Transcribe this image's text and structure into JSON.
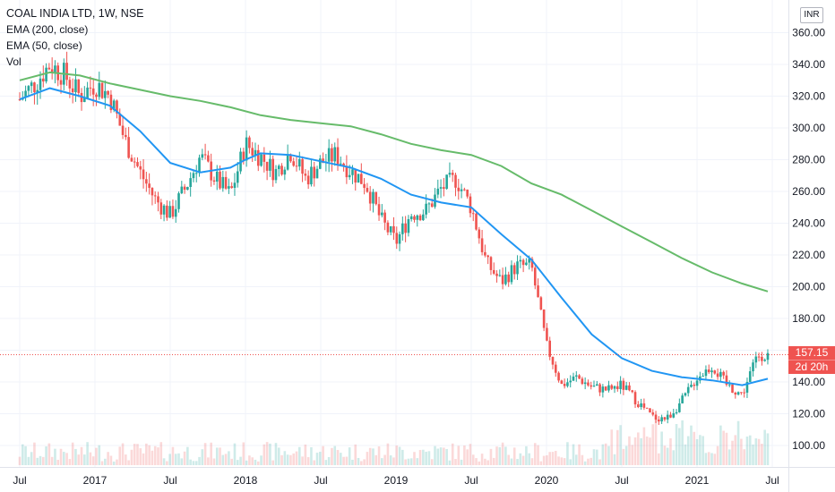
{
  "legend": {
    "title": "COAL INDIA LTD, 1W, NSE",
    "ema200": "EMA (200, close)",
    "ema50": "EMA (50, close)",
    "vol": "Vol"
  },
  "currency": "INR",
  "price_tag": {
    "price": "157.15",
    "countdown": "2d 20h"
  },
  "colors": {
    "up": "#26a69a",
    "down": "#ef5350",
    "ema200": "#66bb6a",
    "ema50": "#2196f3"
  },
  "chart_data": {
    "type": "candlestick",
    "title": "COAL INDIA LTD, 1W, NSE",
    "ylim": [
      90,
      370
    ],
    "y_ticks": [
      100,
      120,
      140,
      160,
      180,
      200,
      220,
      240,
      260,
      280,
      300,
      320,
      340,
      360
    ],
    "y_tick_labels": [
      "100.00",
      "120.00",
      "140.00",
      "160.00",
      "180.00",
      "200.00",
      "220.00",
      "240.00",
      "260.00",
      "280.00",
      "300.00",
      "320.00",
      "340.00",
      "360.00"
    ],
    "x_ticks": [
      {
        "label": "Jul",
        "t": 0.0
      },
      {
        "label": "2017",
        "t": 0.5
      },
      {
        "label": "Jul",
        "t": 1.0
      },
      {
        "label": "2018",
        "t": 1.5
      },
      {
        "label": "Jul",
        "t": 2.0
      },
      {
        "label": "2019",
        "t": 2.5
      },
      {
        "label": "Jul",
        "t": 3.0
      },
      {
        "label": "2020",
        "t": 3.5
      },
      {
        "label": "Jul",
        "t": 4.0
      },
      {
        "label": "2021",
        "t": 4.5
      },
      {
        "label": "Jul",
        "t": 5.0
      }
    ],
    "last_price": 157.15,
    "series": [
      {
        "name": "Price",
        "t": [
          0.0,
          0.1,
          0.2,
          0.3,
          0.4,
          0.5,
          0.6,
          0.7,
          0.8,
          0.9,
          1.0,
          1.1,
          1.2,
          1.3,
          1.4,
          1.5,
          1.6,
          1.7,
          1.8,
          1.9,
          2.0,
          2.1,
          2.2,
          2.3,
          2.4,
          2.5,
          2.6,
          2.7,
          2.8,
          2.9,
          3.0,
          3.1,
          3.2,
          3.3,
          3.4,
          3.5,
          3.6,
          3.7,
          3.8,
          3.9,
          4.0,
          4.1,
          4.2,
          4.3,
          4.4,
          4.5,
          4.6,
          4.7,
          4.8,
          4.9
        ],
        "price": [
          318,
          328,
          340,
          333,
          320,
          328,
          320,
          292,
          272,
          255,
          245,
          262,
          282,
          268,
          258,
          290,
          282,
          272,
          285,
          268,
          278,
          283,
          273,
          265,
          242,
          228,
          246,
          248,
          262,
          268,
          250,
          215,
          203,
          213,
          213,
          163,
          138,
          143,
          137,
          135,
          138,
          128,
          118,
          117,
          128,
          143,
          150,
          138,
          132,
          157
        ]
      },
      {
        "name": "EMA (50, close)",
        "t": [
          0.0,
          0.2,
          0.4,
          0.6,
          0.8,
          1.0,
          1.2,
          1.4,
          1.5,
          1.6,
          1.8,
          2.0,
          2.2,
          2.4,
          2.6,
          2.8,
          3.0,
          3.2,
          3.4,
          3.6,
          3.8,
          4.0,
          4.2,
          4.4,
          4.6,
          4.8,
          4.97
        ],
        "value": [
          318,
          325,
          320,
          314,
          298,
          278,
          272,
          275,
          280,
          284,
          283,
          279,
          275,
          268,
          258,
          253,
          250,
          233,
          217,
          193,
          170,
          155,
          147,
          143,
          141,
          138,
          142
        ]
      },
      {
        "name": "EMA (200, close)",
        "t": [
          0.0,
          0.2,
          0.4,
          0.6,
          0.8,
          1.0,
          1.2,
          1.4,
          1.6,
          1.8,
          2.0,
          2.2,
          2.4,
          2.6,
          2.8,
          3.0,
          3.2,
          3.4,
          3.6,
          3.8,
          4.0,
          4.2,
          4.4,
          4.6,
          4.8,
          4.97
        ],
        "value": [
          330,
          335,
          333,
          328,
          324,
          320,
          317,
          313,
          308,
          305,
          303,
          301,
          296,
          290,
          286,
          283,
          276,
          265,
          258,
          248,
          238,
          228,
          218,
          209,
          202,
          197
        ]
      }
    ]
  }
}
